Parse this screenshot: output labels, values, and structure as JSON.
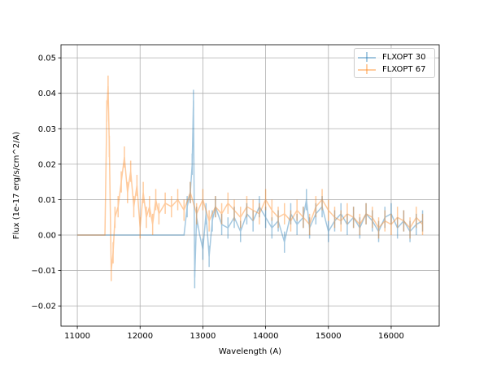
{
  "chart_data": {
    "type": "line",
    "title": "",
    "xlabel": "Wavelength (A)",
    "ylabel": "Flux (1e-17 erg/s/cm^2/A)",
    "xlim": [
      10740,
      16765
    ],
    "ylim": [
      -0.0257,
      0.0537
    ],
    "xticks": [
      11000,
      12000,
      13000,
      14000,
      15000,
      16000
    ],
    "xtick_labels": [
      "11000",
      "12000",
      "13000",
      "14000",
      "15000",
      "16000"
    ],
    "yticks": [
      -0.02,
      -0.01,
      0.0,
      0.01,
      0.02,
      0.03,
      0.04,
      0.05
    ],
    "ytick_labels": [
      "−0.02",
      "−0.01",
      "0.00",
      "0.01",
      "0.02",
      "0.03",
      "0.04",
      "0.05"
    ],
    "grid": true,
    "legend_position": "top-right",
    "series": [
      {
        "name": "FLXOPT 30",
        "color": "#1f77b4",
        "yerr": 0.003,
        "x": [
          11000,
          12700,
          12750,
          12800,
          12830,
          12850,
          12870,
          12900,
          12950,
          13000,
          13050,
          13100,
          13150,
          13200,
          13300,
          13400,
          13500,
          13600,
          13700,
          13800,
          13900,
          14000,
          14100,
          14200,
          14300,
          14400,
          14500,
          14600,
          14650,
          14700,
          14800,
          14900,
          15000,
          15100,
          15200,
          15300,
          15400,
          15500,
          15600,
          15700,
          15800,
          15900,
          16000,
          16100,
          16200,
          16300,
          16400,
          16500
        ],
        "y": [
          0,
          0,
          0.008,
          0.012,
          0.02,
          0.038,
          -0.012,
          0.005,
          0.0,
          -0.004,
          0.006,
          -0.006,
          0.004,
          0.008,
          0.003,
          0.002,
          0.005,
          0.001,
          0.006,
          0.004,
          0.008,
          0.005,
          0.002,
          0.004,
          -0.002,
          0.006,
          0.003,
          0.005,
          0.01,
          0.002,
          0.006,
          0.008,
          0.001,
          0.004,
          0.006,
          0.003,
          0.005,
          0.002,
          0.006,
          0.004,
          0.001,
          0.005,
          0.006,
          0.002,
          0.004,
          0.001,
          0.003,
          0.004
        ]
      },
      {
        "name": "FLXOPT 67",
        "color": "#ff7f0e",
        "yerr": 0.003,
        "x": [
          11000,
          11440,
          11470,
          11490,
          11510,
          11540,
          11570,
          11600,
          11650,
          11700,
          11750,
          11800,
          11850,
          11900,
          11950,
          12000,
          12050,
          12100,
          12150,
          12200,
          12250,
          12300,
          12400,
          12500,
          12600,
          12700,
          12800,
          12900,
          13000,
          13100,
          13200,
          13300,
          13400,
          13500,
          13600,
          13700,
          13800,
          13900,
          14000,
          14100,
          14200,
          14300,
          14400,
          14500,
          14600,
          14700,
          14800,
          14900,
          15000,
          15100,
          15200,
          15300,
          15400,
          15500,
          15600,
          15700,
          15800,
          15900,
          16000,
          16100,
          16200,
          16300,
          16400,
          16500
        ],
        "y": [
          0,
          0,
          0.035,
          0.042,
          0.025,
          -0.01,
          -0.005,
          0.005,
          0.008,
          0.015,
          0.022,
          0.012,
          0.018,
          0.008,
          0.014,
          0.002,
          0.012,
          0.005,
          0.008,
          0.003,
          0.01,
          0.006,
          0.009,
          0.008,
          0.01,
          0.007,
          0.012,
          0.006,
          0.01,
          0.004,
          0.008,
          0.006,
          0.009,
          0.007,
          0.005,
          0.008,
          0.007,
          0.006,
          0.01,
          0.007,
          0.005,
          0.006,
          0.004,
          0.007,
          0.005,
          0.003,
          0.008,
          0.01,
          0.007,
          0.005,
          0.004,
          0.006,
          0.005,
          0.003,
          0.006,
          0.005,
          0.002,
          0.004,
          0.003,
          0.005,
          0.004,
          0.002,
          0.005,
          0.003
        ]
      }
    ]
  }
}
